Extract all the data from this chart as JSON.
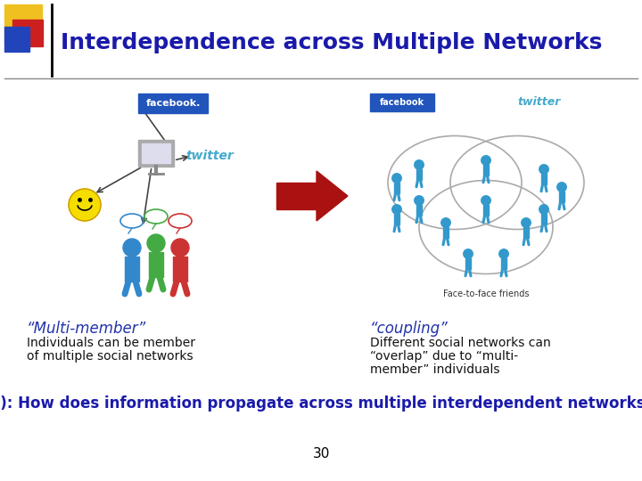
{
  "title": "Interdependence across Multiple Networks",
  "title_color": "#1a1aaa",
  "title_fontsize": 18,
  "bg_color": "#ffffff",
  "accent_yellow": "#f0c020",
  "accent_red": "#cc2020",
  "accent_blue": "#2244bb",
  "header_line_color": "#888888",
  "multimember_label": "“Multi-member”",
  "multimember_desc1": "Individuals can be member",
  "multimember_desc2": "of multiple social networks",
  "coupling_label": "“coupling”",
  "coupling_desc1": "Different social networks can",
  "coupling_desc2": "“overlap” due to “multi-",
  "coupling_desc3": "member” individuals",
  "question": "Q): How does information propagate across multiple interdependent networks?",
  "question_color": "#1a1aaa",
  "page_number": "30",
  "label_color": "#2233aa",
  "text_color": "#111111",
  "desc_fontsize": 10,
  "label_fontsize": 12,
  "question_fontsize": 12,
  "fb_color": "#2255bb",
  "twitter_color": "#44aacc",
  "person_color": "#3399cc",
  "arrow_color": "#aa1111",
  "face_to_face_label": "Face-to-face friends"
}
